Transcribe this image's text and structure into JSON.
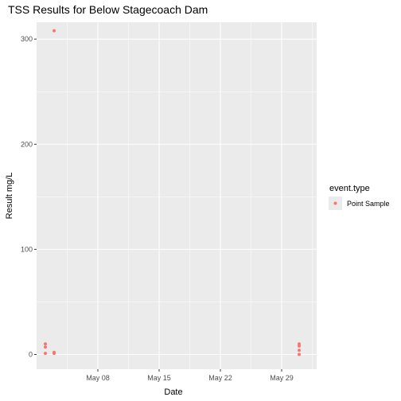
{
  "chart_data": {
    "type": "scatter",
    "title": "TSS Results for Below Stagecoach Dam",
    "xlabel": "Date",
    "ylabel": "Result mg/L",
    "x_type": "date",
    "xlim": [
      "2023-05-01",
      "2023-06-02"
    ],
    "ylim": [
      -14,
      316
    ],
    "x_ticks": [
      {
        "value": "2023-05-08",
        "label": "May 08"
      },
      {
        "value": "2023-05-15",
        "label": "May 15"
      },
      {
        "value": "2023-05-22",
        "label": "May 22"
      },
      {
        "value": "2023-05-29",
        "label": "May 29"
      }
    ],
    "y_ticks": [
      {
        "value": 0,
        "label": "0"
      },
      {
        "value": 100,
        "label": "100"
      },
      {
        "value": 200,
        "label": "200"
      },
      {
        "value": 300,
        "label": "300"
      }
    ],
    "grid": true,
    "legend": {
      "title": "event.type",
      "position": "right",
      "entries": [
        {
          "label": "Point Sample",
          "color": "#F8766D"
        }
      ]
    },
    "series": [
      {
        "name": "Point Sample",
        "color": "#F8766D",
        "points": [
          {
            "x": "2023-05-02",
            "y": 10
          },
          {
            "x": "2023-05-02",
            "y": 7
          },
          {
            "x": "2023-05-02",
            "y": 1
          },
          {
            "x": "2023-05-03",
            "y": 308
          },
          {
            "x": "2023-05-03",
            "y": 2
          },
          {
            "x": "2023-05-03",
            "y": 1
          },
          {
            "x": "2023-05-31",
            "y": 10
          },
          {
            "x": "2023-05-31",
            "y": 8
          },
          {
            "x": "2023-05-31",
            "y": 4
          },
          {
            "x": "2023-05-31",
            "y": 0
          }
        ]
      }
    ]
  }
}
